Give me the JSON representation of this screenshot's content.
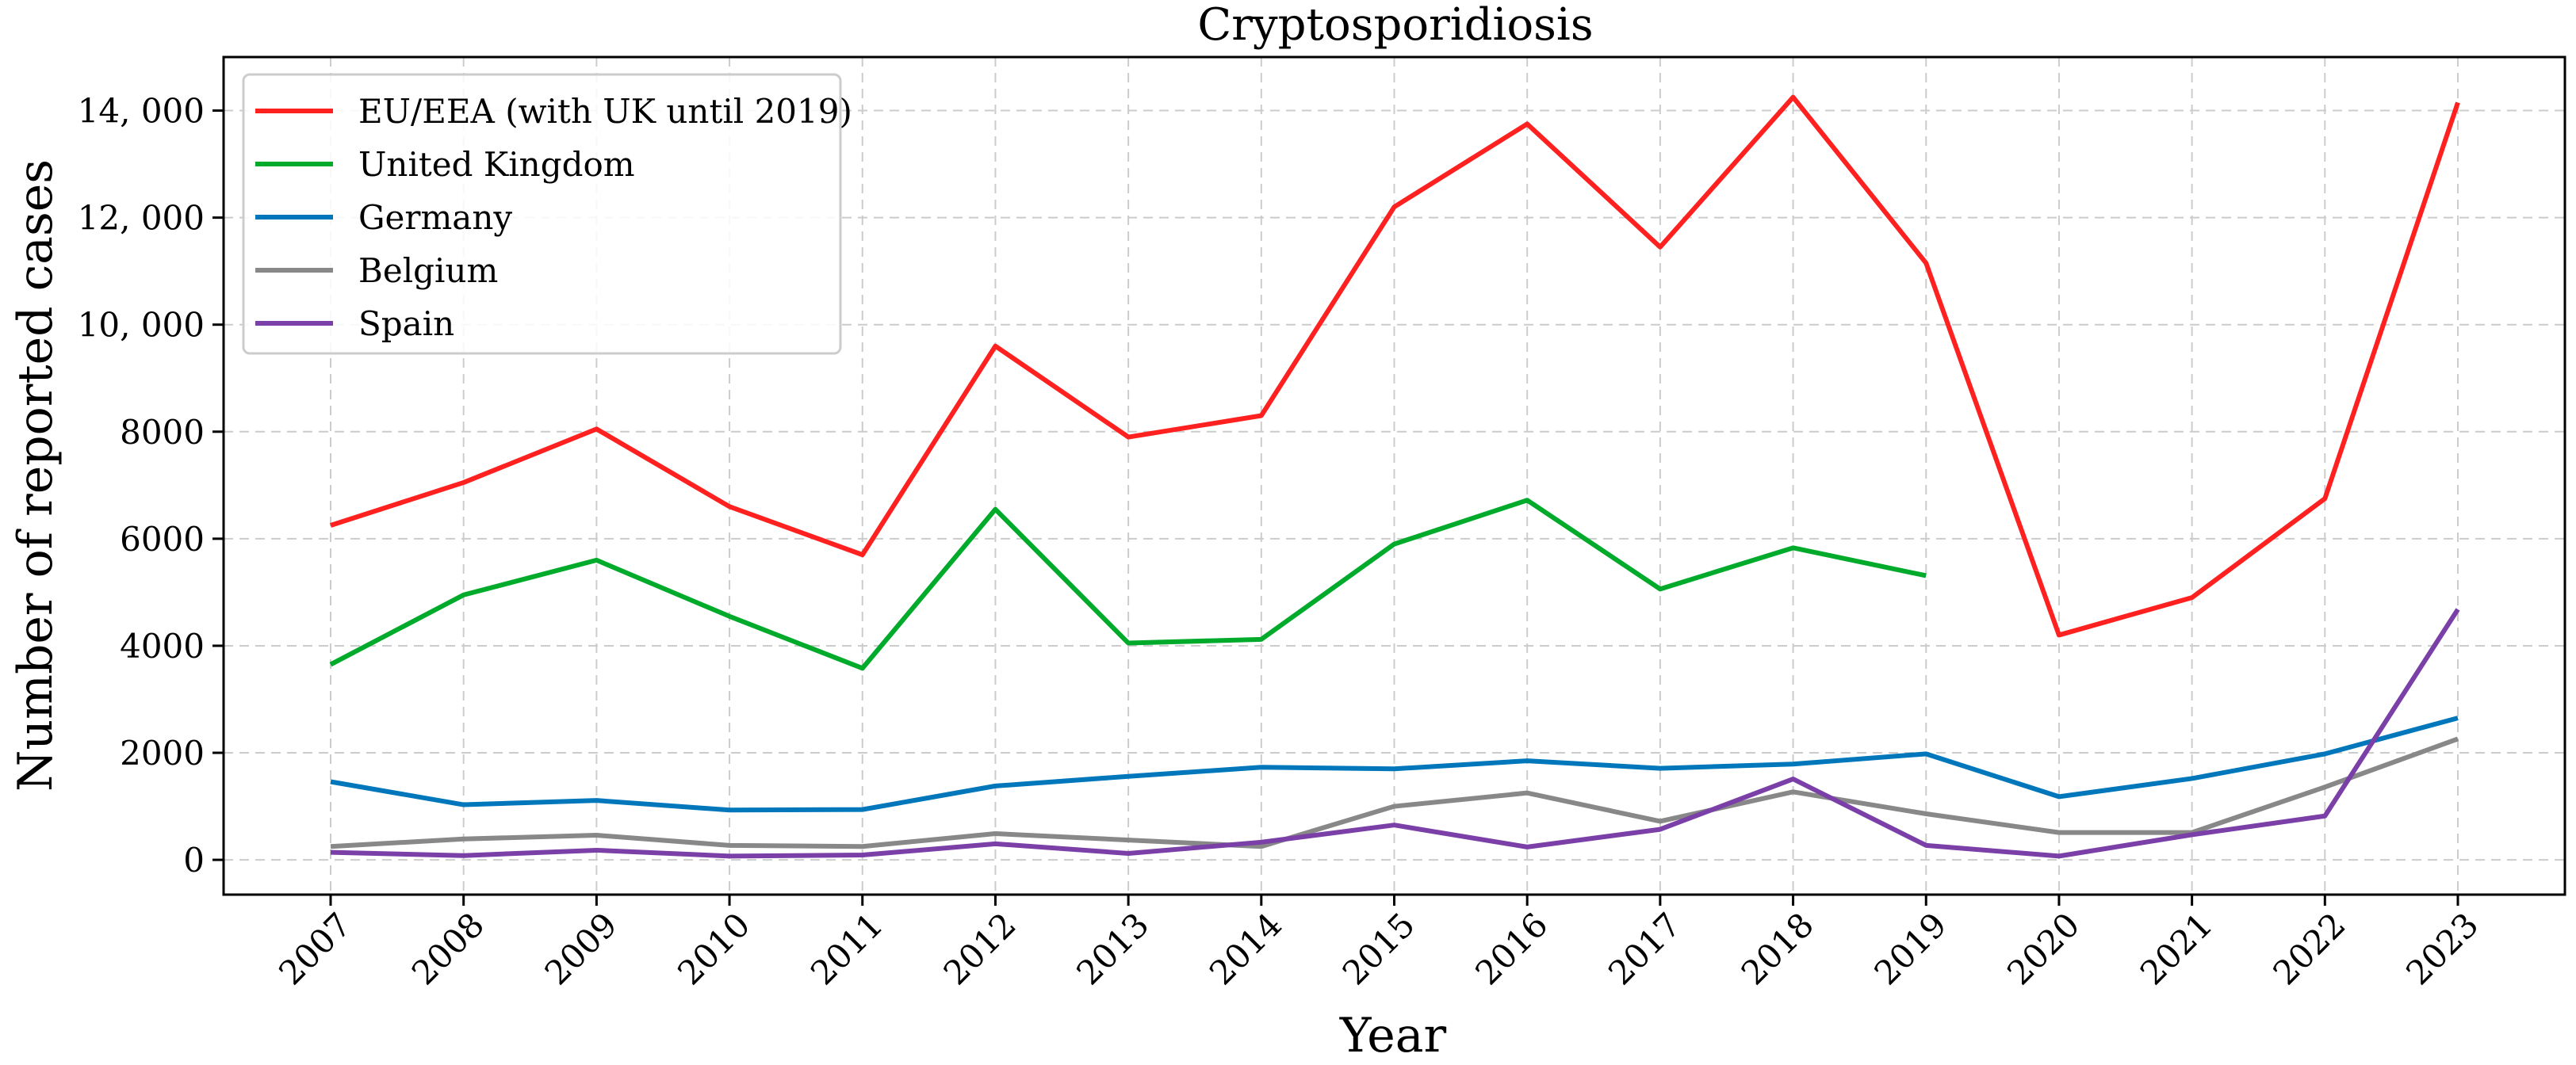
{
  "chart_data": {
    "type": "line",
    "title": "Cryptosporidiosis",
    "xlabel": "Year",
    "ylabel": "Number of reported cases",
    "x": [
      "2007",
      "2008",
      "2009",
      "2010",
      "2011",
      "2012",
      "2013",
      "2014",
      "2015",
      "2016",
      "2017",
      "2018",
      "2019",
      "2020",
      "2021",
      "2022",
      "2023"
    ],
    "ylim": [
      -650,
      15000
    ],
    "yticks": [
      0,
      2000,
      4000,
      6000,
      8000,
      10000,
      12000,
      14000
    ],
    "ytick_labels": [
      "0",
      "2000",
      "4000",
      "6000",
      "8000",
      "10, 000",
      "12, 000",
      "14, 000"
    ],
    "grid": true,
    "legend_position": "top-left",
    "series": [
      {
        "name": "EU/EEA (with UK until 2019)",
        "color": "#ff2020",
        "values": [
          6250,
          7050,
          8050,
          6600,
          5700,
          9600,
          7900,
          8300,
          12200,
          13750,
          11450,
          14250,
          11150,
          4200,
          4900,
          6750,
          14150
        ]
      },
      {
        "name": "United Kingdom",
        "color": "#00aa2a",
        "values": [
          3650,
          4950,
          5600,
          4550,
          3580,
          6550,
          4050,
          4120,
          5900,
          6720,
          5060,
          5830,
          5310,
          null,
          null,
          null,
          null
        ]
      },
      {
        "name": "Germany",
        "color": "#0077bb",
        "values": [
          1460,
          1030,
          1110,
          930,
          940,
          1380,
          1560,
          1730,
          1700,
          1850,
          1710,
          1790,
          1980,
          1180,
          1520,
          1980,
          2650
        ]
      },
      {
        "name": "Belgium",
        "color": "#888888",
        "values": [
          250,
          390,
          460,
          270,
          250,
          490,
          370,
          250,
          1000,
          1250,
          720,
          1270,
          860,
          510,
          510,
          1360,
          2260
        ]
      },
      {
        "name": "Spain",
        "color": "#7b3fa8",
        "values": [
          140,
          80,
          180,
          70,
          90,
          300,
          120,
          330,
          650,
          240,
          570,
          1510,
          270,
          70,
          470,
          820,
          4680
        ]
      }
    ]
  }
}
